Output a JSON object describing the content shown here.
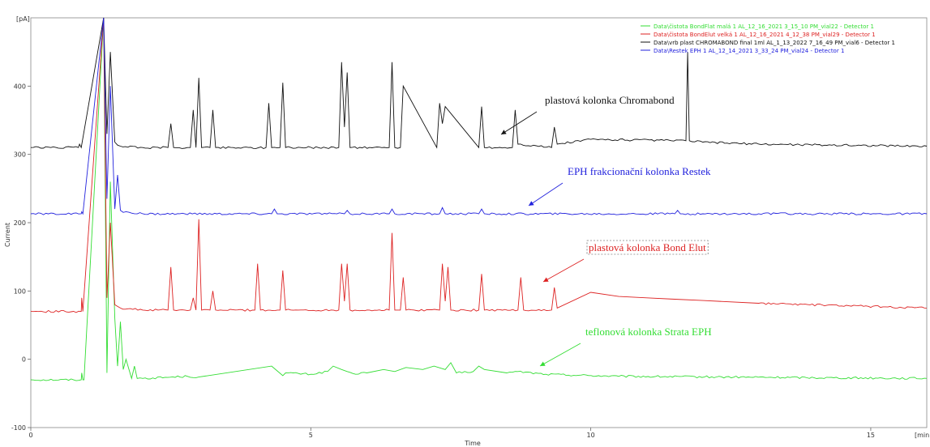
{
  "chart_data": {
    "type": "line",
    "xlabel": "Time",
    "ylabel": "Current",
    "x_unit": "[min]",
    "y_unit": "[pA]",
    "xlim": [
      0,
      16
    ],
    "ylim": [
      -100,
      500
    ],
    "x_ticks": [
      0,
      5,
      10,
      15
    ],
    "y_ticks": [
      -100,
      0,
      100,
      200,
      300,
      400
    ],
    "grid": false,
    "legend_position": "top-right",
    "series": [
      {
        "name": "Data\\čistota BondFlat malá 1 AL_12_16_2021 3_15_10 PM_vial22 - Detector 1",
        "color": "#33dd33",
        "baseline": -30,
        "x": [
          0,
          0.9,
          0.91,
          0.93,
          0.95,
          1.3,
          1.36,
          1.42,
          1.5,
          1.55,
          1.6,
          1.65,
          1.7,
          1.8,
          1.85,
          1.9,
          2.0,
          2.8,
          3.0,
          4.3,
          4.5,
          4.55,
          5.0,
          5.3,
          5.4,
          5.55,
          5.65,
          5.8,
          6.0,
          6.3,
          6.5,
          6.7,
          7.0,
          7.2,
          7.4,
          7.5,
          7.6,
          7.9,
          8.0,
          8.1,
          8.5,
          8.7,
          9.2,
          10.5,
          16
        ],
        "y": [
          -30,
          -30,
          -20,
          -30,
          -30,
          520,
          -20,
          260,
          60,
          -10,
          55,
          -15,
          0,
          -28,
          -10,
          -28,
          -28,
          -25,
          -26,
          -10,
          -24,
          -20,
          -22,
          -18,
          -10,
          -15,
          -18,
          -22,
          -20,
          -15,
          -18,
          -12,
          -15,
          -10,
          -15,
          -5,
          -20,
          -18,
          -10,
          -15,
          -20,
          -18,
          -22,
          -25,
          -28
        ]
      },
      {
        "name": "Data\\čistota BondElut velká 1 AL_12_16_2021 4_12_38 PM_vial29 - Detector 1",
        "color": "#dd2222",
        "baseline": 70,
        "x": [
          0,
          0.9,
          0.91,
          0.93,
          1.3,
          1.36,
          1.42,
          1.5,
          1.6,
          2.0,
          2.45,
          2.5,
          2.55,
          2.85,
          2.9,
          2.95,
          3.0,
          3.05,
          3.2,
          3.25,
          3.3,
          4.0,
          4.05,
          4.1,
          4.45,
          4.5,
          4.55,
          5.5,
          5.55,
          5.6,
          5.65,
          5.7,
          6.4,
          6.45,
          6.5,
          6.6,
          6.65,
          6.7,
          7.3,
          7.35,
          7.4,
          7.45,
          7.5,
          8.0,
          8.05,
          8.1,
          8.7,
          8.75,
          8.8,
          9.3,
          9.35,
          9.4,
          10.0,
          10.5,
          11.0,
          11.5,
          12.0,
          13.0,
          16
        ],
        "y": [
          70,
          70,
          90,
          70,
          520,
          90,
          200,
          80,
          75,
          72,
          72,
          135,
          72,
          72,
          90,
          72,
          205,
          72,
          72,
          100,
          72,
          72,
          140,
          72,
          72,
          130,
          72,
          72,
          140,
          85,
          140,
          72,
          72,
          185,
          72,
          72,
          120,
          72,
          72,
          140,
          85,
          135,
          72,
          72,
          125,
          72,
          72,
          120,
          72,
          72,
          105,
          75,
          98,
          92,
          90,
          88,
          86,
          82,
          75
        ]
      },
      {
        "name": "Data\\vrb plast CHROMABOND final 1ml AL_1_13_2022 7_16_49 PM_vial6 - Detector 1",
        "color": "#111111",
        "baseline": 310,
        "x": [
          0,
          0.85,
          0.87,
          0.9,
          1.3,
          1.36,
          1.42,
          1.5,
          1.6,
          2.0,
          2.45,
          2.5,
          2.55,
          2.85,
          2.9,
          2.95,
          3.0,
          3.05,
          3.2,
          3.25,
          3.3,
          4.2,
          4.25,
          4.3,
          4.45,
          4.5,
          4.55,
          5.5,
          5.55,
          5.6,
          5.65,
          5.7,
          6.4,
          6.45,
          6.5,
          6.6,
          6.65,
          7.25,
          7.3,
          7.35,
          7.4,
          8.0,
          8.05,
          8.1,
          8.6,
          8.65,
          8.7,
          9.3,
          9.35,
          9.4,
          10.0,
          11.7,
          11.73,
          11.76,
          12.0,
          13.0,
          16
        ],
        "y": [
          310,
          310,
          315,
          310,
          520,
          330,
          450,
          318,
          312,
          310,
          310,
          345,
          310,
          310,
          365,
          310,
          412,
          310,
          310,
          365,
          310,
          310,
          375,
          310,
          310,
          405,
          310,
          310,
          435,
          340,
          420,
          310,
          310,
          435,
          310,
          310,
          400,
          310,
          375,
          345,
          370,
          310,
          370,
          310,
          310,
          365,
          315,
          310,
          340,
          315,
          322,
          320,
          450,
          320,
          318,
          315,
          312
        ]
      },
      {
        "name": "Data\\Restek EPH 1 AL_12_14_2021 3_33_24 PM_vial24 - Detector 1",
        "color": "#2222dd",
        "baseline": 213,
        "x": [
          0,
          0.9,
          0.91,
          0.93,
          1.3,
          1.36,
          1.42,
          1.5,
          1.55,
          1.6,
          1.65,
          1.8,
          2.0,
          4.3,
          4.35,
          4.4,
          5.6,
          5.65,
          5.7,
          6.4,
          6.45,
          6.5,
          7.3,
          7.35,
          7.4,
          8.0,
          8.05,
          8.1,
          11.5,
          11.55,
          11.6,
          12.0,
          16
        ],
        "y": [
          213,
          213,
          216,
          213,
          520,
          235,
          400,
          220,
          270,
          218,
          215,
          214,
          213,
          213,
          220,
          213,
          213,
          218,
          213,
          213,
          220,
          213,
          213,
          222,
          213,
          213,
          220,
          213,
          213,
          218,
          213,
          213,
          213
        ]
      }
    ],
    "annotations": [
      {
        "text": "plastová kolonka Chromabond",
        "color": "#111111"
      },
      {
        "text": "EPH frakcionační kolonka Restek",
        "color": "#2222dd"
      },
      {
        "text": "plastová kolonka Bond Elut",
        "color": "#dd2222"
      },
      {
        "text": "teflonová kolonka Strata EPH",
        "color": "#33dd33"
      }
    ]
  }
}
